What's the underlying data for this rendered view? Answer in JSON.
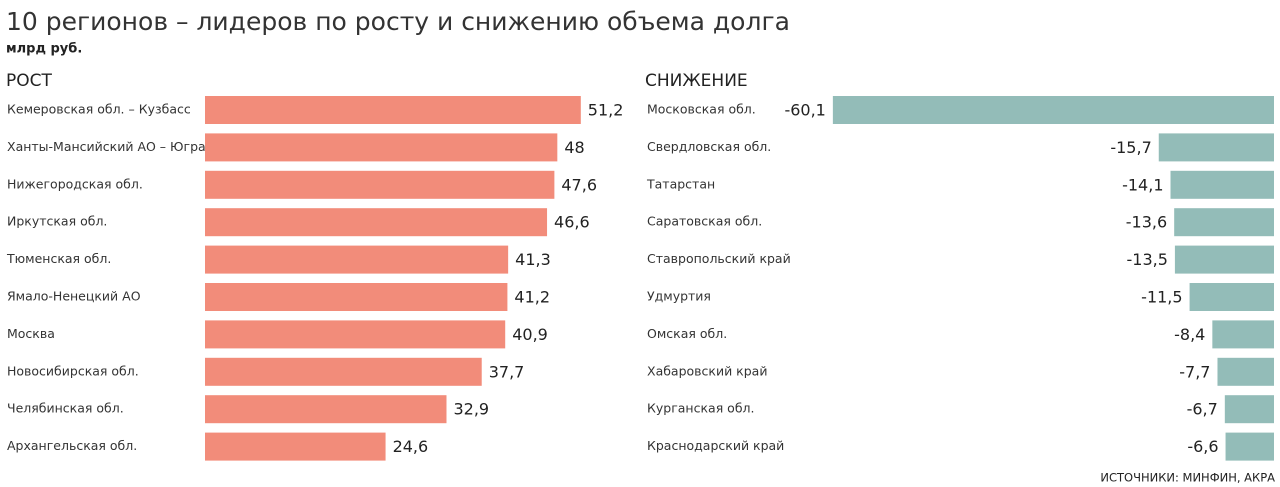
{
  "title": "10 регионов – лидеров по росту и снижению объема долга",
  "subtitle": "млрд руб.",
  "source": "ИСТОЧНИКИ: МИНФИН, АКРА",
  "chart_data": [
    {
      "type": "bar",
      "title": "РОСТ",
      "color": "#f28c7a",
      "categories": [
        "Кемеровская обл. – Кузбасс",
        "Ханты-Мансийский АО – Югра",
        "Нижегородская обл.",
        "Иркутская обл.",
        "Тюменская обл.",
        "Ямало-Ненецкий АО",
        "Москва",
        "Новосибирская обл.",
        "Челябинская обл.",
        "Архангельская обл."
      ],
      "values": [
        51.2,
        48,
        47.6,
        46.6,
        41.3,
        41.2,
        40.9,
        37.7,
        32.9,
        24.6
      ],
      "value_labels": [
        "51,2",
        "48",
        "47,6",
        "46,6",
        "41,3",
        "41,2",
        "40,9",
        "37,7",
        "32,9",
        "24,6"
      ]
    },
    {
      "type": "bar",
      "title": "СНИЖЕНИЕ",
      "color": "#93bcb8",
      "categories": [
        "Московская обл.",
        "Свердловская обл.",
        "Татарстан",
        "Саратовская обл.",
        "Ставропольский край",
        "Удмуртия",
        "Омская обл.",
        "Хабаровский край",
        "Курганская обл.",
        "Краснодарский край"
      ],
      "values": [
        -60.1,
        -15.7,
        -14.1,
        -13.6,
        -13.5,
        -11.5,
        -8.4,
        -7.7,
        -6.7,
        -6.6
      ],
      "value_labels": [
        "-60,1",
        "-15,7",
        "-14,1",
        "-13,6",
        "-13,5",
        "-11,5",
        "-8,4",
        "-7,7",
        "-6,7",
        "-6,6"
      ]
    }
  ]
}
